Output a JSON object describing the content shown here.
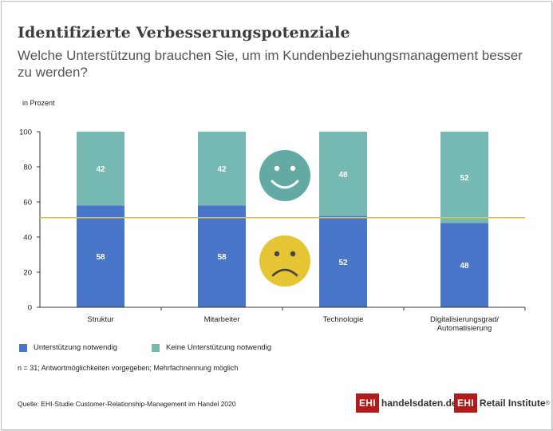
{
  "title": "Identifizierte Verbesserungspotenziale",
  "subtitle": "Welche Unterstützung brauchen Sie, um im Kundenbeziehungsmanagement besser zu werden?",
  "unit_label": "in Prozent",
  "note": "n = 31; Antwortmöglichkeiten vorgegeben; Mehrfachnennung möglich",
  "source": "Quelle: EHI-Studie Customer-Relationship-Management im Handel 2020",
  "logos": [
    {
      "box": "EHI",
      "text": "handelsdaten.de"
    },
    {
      "box": "EHI",
      "text": "Retail Institute",
      "mark": "®"
    }
  ],
  "colors": {
    "blue": "#4a76c9",
    "teal": "#76b9b2",
    "line": "#e0c334",
    "smiley_happy": "#62aaa3",
    "smiley_sad": "#e6c534"
  },
  "icons": [
    "happy-smiley-icon",
    "sad-smiley-icon"
  ],
  "chart_data": {
    "type": "bar",
    "stacked": true,
    "categories": [
      "Struktur",
      "Mitarbeiter",
      "Technologie",
      "Digitalisierungsgrad/\nAutomatisierung"
    ],
    "series": [
      {
        "name": "Unterstützung notwendig",
        "color": "#4a76c9",
        "values": [
          58,
          58,
          52,
          48
        ]
      },
      {
        "name": "Keine Unterstützung notwendig",
        "color": "#76b9b2",
        "values": [
          42,
          42,
          48,
          52
        ]
      }
    ],
    "ylim": [
      0,
      100
    ],
    "yticks": [
      0,
      20,
      40,
      60,
      80,
      100
    ],
    "reference_line": 51,
    "grid": false,
    "legend_position": "bottom-left"
  }
}
